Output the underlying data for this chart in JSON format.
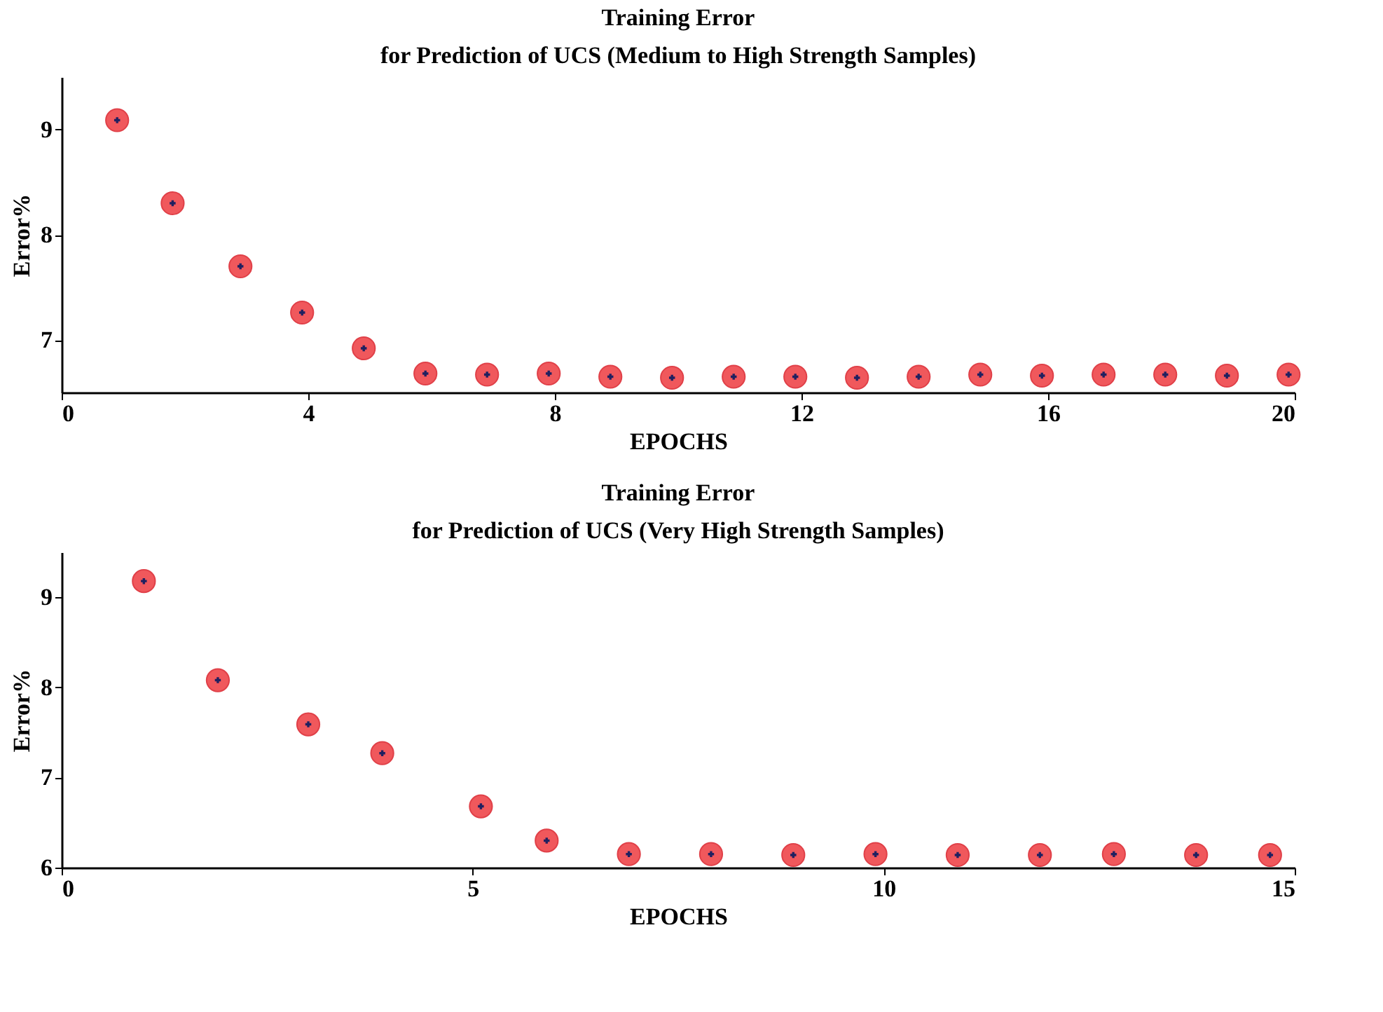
{
  "chart_data": [
    {
      "type": "scatter",
      "title": "Training Error",
      "subtitle": "for Prediction of UCS (Medium to High Strength Samples)",
      "xlabel": "EPOCHS",
      "ylabel": "Error%",
      "xlim": [
        0,
        20
      ],
      "xticks": [
        0,
        4,
        8,
        12,
        16,
        20
      ],
      "ylim": [
        6.5,
        9.5
      ],
      "yticks": [
        7,
        8,
        9
      ],
      "grid": false,
      "marker": "circle",
      "x": [
        0.9,
        1.8,
        2.9,
        3.9,
        4.9,
        5.9,
        6.9,
        7.9,
        8.9,
        9.9,
        10.9,
        11.9,
        12.9,
        13.9,
        14.9,
        15.9,
        16.9,
        17.9,
        18.9,
        19.9
      ],
      "series": [
        {
          "color": "#f0585c",
          "values": [
            9.09,
            8.3,
            7.7,
            7.26,
            6.92,
            6.68,
            6.67,
            6.68,
            6.65,
            6.64,
            6.65,
            6.65,
            6.64,
            6.65,
            6.67,
            6.66,
            6.67,
            6.67,
            6.66,
            6.67
          ]
        }
      ]
    },
    {
      "type": "scatter",
      "title": "Training Error",
      "subtitle": "for Prediction of UCS (Very High Strength Samples)",
      "xlabel": "EPOCHS",
      "ylabel": "Error%",
      "xlim": [
        0,
        15
      ],
      "xticks": [
        0,
        5,
        10,
        15
      ],
      "ylim": [
        6,
        9.5
      ],
      "yticks": [
        6,
        7,
        8,
        9
      ],
      "grid": false,
      "marker": "circle",
      "x": [
        1,
        1.9,
        3,
        3.9,
        5.1,
        5.9,
        6.9,
        7.9,
        8.9,
        9.9,
        10.9,
        11.9,
        12.8,
        13.8,
        14.7
      ],
      "series": [
        {
          "color": "#f0585c",
          "values": [
            9.18,
            8.08,
            7.59,
            7.27,
            6.68,
            6.3,
            6.15,
            6.15,
            6.14,
            6.15,
            6.14,
            6.14,
            6.15,
            6.14,
            6.14
          ]
        }
      ]
    }
  ]
}
